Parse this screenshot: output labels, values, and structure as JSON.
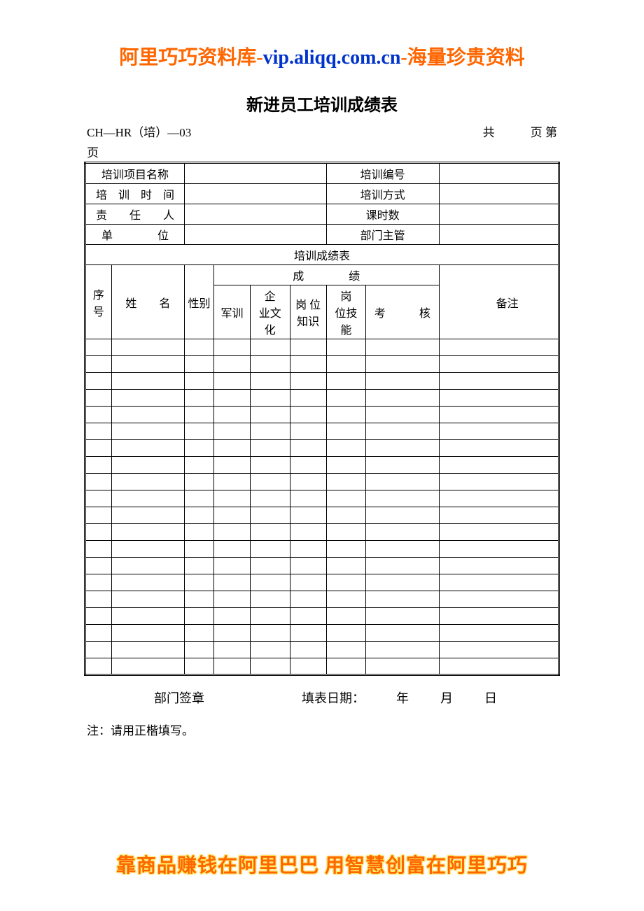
{
  "banner_top": {
    "part1": "阿里巧巧资料库-",
    "part2": "vip.aliqq.com.cn",
    "part3": "-海量珍贵资料"
  },
  "title": "新进员工培训成绩表",
  "meta_left": "CH—HR（培）—03",
  "meta_right": "共　　　页  第",
  "meta_line2": "页",
  "info": {
    "r1c1": "培训项目名称",
    "r1c3": "培训编号",
    "r2c1": "培　训　时　间",
    "r2c3": "培训方式",
    "r3c1": "责　　任　　人",
    "r3c3": "课时数",
    "r4c1": "单　　　　位",
    "r4c3": "部门主管"
  },
  "section_header": "培训成绩表",
  "columns": {
    "seq": "序号",
    "name": "姓　　名",
    "gender": "性别",
    "score_group": "成　　　　绩",
    "score_sub": {
      "s1": "军训",
      "s2": "企　业文　化",
      "s3": "岗 位知识",
      "s4": "岗　位技能",
      "s5": "考　　　核"
    },
    "remark": "备注"
  },
  "data_row_count": 20,
  "footer": {
    "stamp_label": "部门签章",
    "date_label": "填表日期：",
    "year": "年",
    "month": "月",
    "day": "日"
  },
  "note": "注：请用正楷填写。",
  "banner_bottom": "靠商品赚钱在阿里巴巴  用智慧创富在阿里巧巧",
  "colors": {
    "orange": "#ff6600",
    "blue": "#0033cc",
    "border": "#000000",
    "bg": "#ffffff"
  }
}
